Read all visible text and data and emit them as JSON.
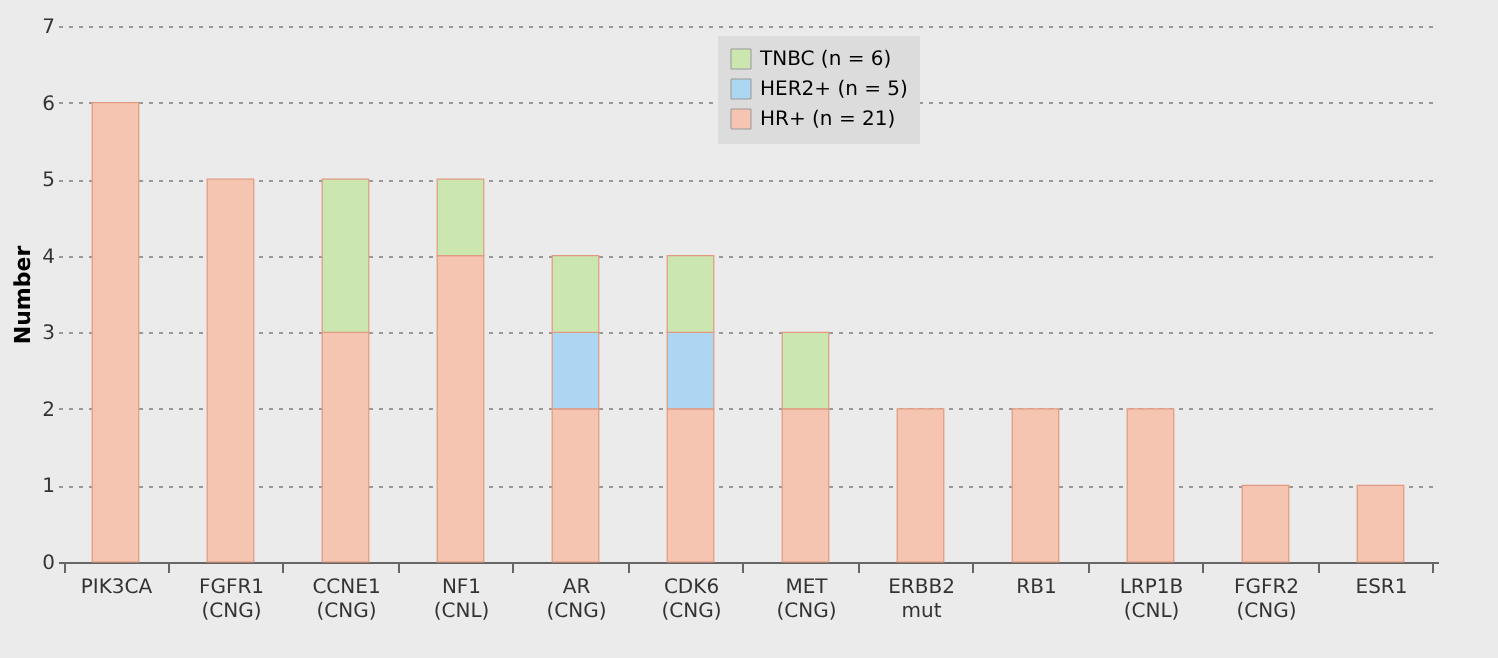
{
  "chart_data": {
    "type": "bar",
    "stacked": true,
    "ylabel": "Number",
    "categories": [
      "PIK3CA",
      "FGFR1\n(CNG)",
      "CCNE1\n(CNG)",
      "NF1\n(CNL)",
      "AR\n(CNG)",
      "CDK6\n(CNG)",
      "MET\n(CNG)",
      "ERBB2\nmut",
      "RB1",
      "LRP1B\n(CNL)",
      "FGFR2\n(CNG)",
      "ESR1"
    ],
    "series": [
      {
        "name": "HR+ (n = 21)",
        "color": "#f6c5b1",
        "values": [
          6,
          5,
          3,
          4,
          2,
          2,
          2,
          2,
          2,
          2,
          1,
          1
        ]
      },
      {
        "name": "HER2+ (n = 5)",
        "color": "#acd6f1",
        "values": [
          null,
          null,
          null,
          null,
          1,
          1,
          null,
          null,
          null,
          null,
          null,
          null
        ]
      },
      {
        "name": "TNBC (n = 6)",
        "color": "#cce6b0",
        "values": [
          null,
          null,
          2,
          1,
          1,
          1,
          1,
          null,
          null,
          null,
          null,
          null
        ]
      }
    ],
    "ylim": [
      0,
      7
    ],
    "yticks": [
      0,
      1,
      2,
      3,
      4,
      5,
      6,
      7
    ],
    "grid": "y",
    "legend": "top"
  }
}
